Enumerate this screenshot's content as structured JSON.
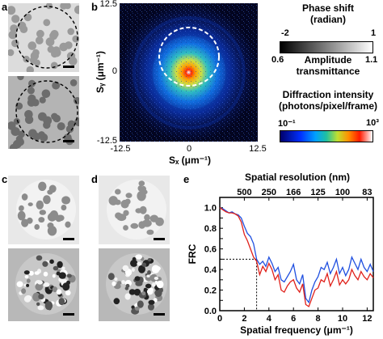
{
  "panels": {
    "a": "a",
    "b": "b",
    "c": "c",
    "d": "d",
    "e": "e"
  },
  "panel_b": {
    "xlabel": "Sₓ (μm⁻¹)",
    "ylabel": "Sᵧ (μm⁻¹)",
    "x_ticks": [
      "-12.5",
      "0",
      "12.5"
    ],
    "y_ticks": [
      "12.5",
      "0",
      "-12.5"
    ]
  },
  "phase_colorbar": {
    "title_line1": "Phase shift",
    "title_line2": "(radian)",
    "min": "-2",
    "max": "1",
    "amp_min": "0.6",
    "amp_max": "1.1",
    "amp_title_line1": "Amplitude",
    "amp_title_line2": "transmittance"
  },
  "diffraction_colorbar": {
    "title_line1": "Diffraction intensity",
    "title_line2": "(photons/pixel/frame)",
    "min": "10⁻¹",
    "max": "10³"
  },
  "colors": {
    "frc_red": "#e0201a",
    "frc_blue": "#2050e0",
    "frame_fill": "#000000"
  },
  "chart_data": {
    "type": "line",
    "xlabel": "Spatial frequency (μm⁻¹)",
    "ylabel": "FRC",
    "top_axis_label": "Spatial resolution (nm)",
    "top_ticks": [
      "500",
      "250",
      "166",
      "125",
      "100",
      "83"
    ],
    "top_tick_positions": [
      1,
      2,
      3,
      4,
      5,
      6
    ],
    "xlim": [
      0,
      12.5
    ],
    "ylim": [
      0,
      1.1
    ],
    "x_ticks": [
      0,
      2,
      4,
      6,
      8,
      10,
      12
    ],
    "y_ticks": [
      0,
      0.1,
      0.2,
      0.3,
      0.4,
      0.5,
      0.6,
      0.7,
      0.8,
      0.9,
      1.0
    ],
    "threshold": {
      "y": 0.5,
      "x_cross": 3.0
    },
    "x": [
      0,
      0.25,
      0.5,
      0.75,
      1.0,
      1.25,
      1.5,
      1.75,
      2.0,
      2.25,
      2.5,
      2.75,
      3.0,
      3.25,
      3.5,
      3.75,
      4.0,
      4.25,
      4.5,
      4.75,
      5.0,
      5.25,
      5.5,
      5.75,
      6.0,
      6.25,
      6.5,
      6.75,
      7.0,
      7.25,
      7.5,
      7.75,
      8.0,
      8.25,
      8.5,
      8.75,
      9.0,
      9.25,
      9.5,
      9.75,
      10.0,
      10.25,
      10.5,
      10.75,
      11.0,
      11.25,
      11.5,
      11.75,
      12.0,
      12.25,
      12.5
    ],
    "series": [
      {
        "color": "#2050e0",
        "values": [
          1.0,
          0.99,
          0.97,
          0.95,
          0.96,
          0.94,
          0.93,
          0.9,
          0.82,
          0.75,
          0.72,
          0.65,
          0.5,
          0.45,
          0.48,
          0.43,
          0.52,
          0.46,
          0.38,
          0.42,
          0.3,
          0.28,
          0.33,
          0.38,
          0.45,
          0.3,
          0.26,
          0.35,
          0.12,
          0.08,
          0.2,
          0.28,
          0.33,
          0.42,
          0.4,
          0.47,
          0.36,
          0.42,
          0.5,
          0.36,
          0.42,
          0.34,
          0.4,
          0.52,
          0.46,
          0.4,
          0.5,
          0.42,
          0.38,
          0.45,
          0.38
        ]
      },
      {
        "color": "#e0201a",
        "values": [
          1.0,
          0.98,
          0.96,
          0.95,
          0.95,
          0.94,
          0.92,
          0.86,
          0.74,
          0.68,
          0.6,
          0.52,
          0.48,
          0.35,
          0.43,
          0.38,
          0.46,
          0.4,
          0.3,
          0.35,
          0.2,
          0.18,
          0.24,
          0.28,
          0.3,
          0.22,
          0.18,
          0.26,
          0.06,
          0.04,
          0.12,
          0.2,
          0.22,
          0.3,
          0.28,
          0.36,
          0.24,
          0.3,
          0.38,
          0.25,
          0.3,
          0.26,
          0.3,
          0.4,
          0.34,
          0.3,
          0.38,
          0.33,
          0.3,
          0.36,
          0.32
        ]
      }
    ]
  }
}
